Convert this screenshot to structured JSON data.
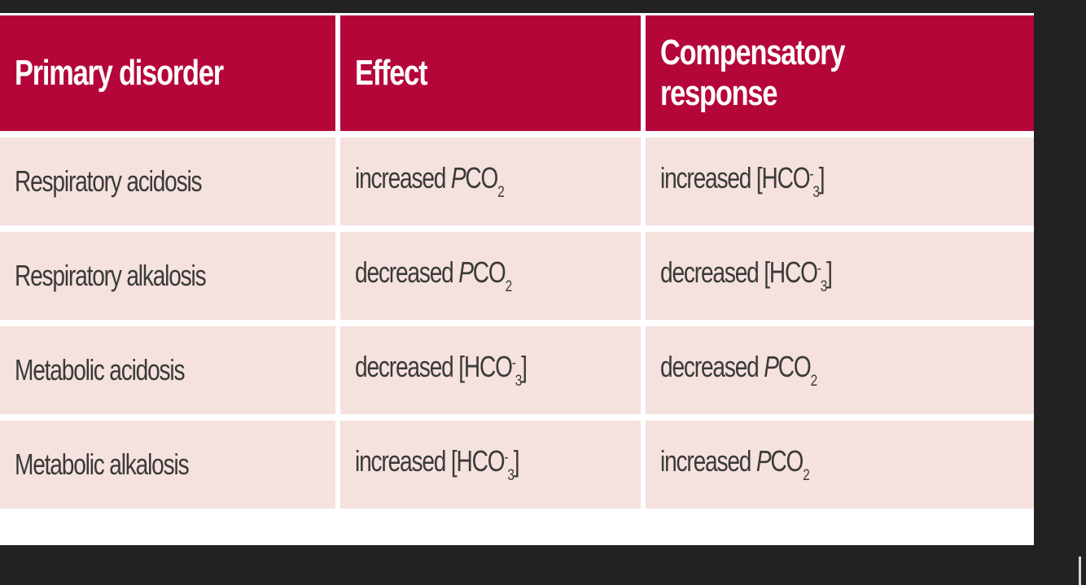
{
  "table": {
    "headers": [
      "Primary disorder",
      "Effect",
      "Compensatory response"
    ],
    "rows": [
      {
        "disorder": "Respiratory acidosis",
        "effect": {
          "pre": "increased ",
          "species": "PCO",
          "sub": "2",
          "sup": "",
          "post": "",
          "italic": true,
          "bracket": false
        },
        "response": {
          "pre": "increased ",
          "species": "HCO",
          "sub": "3",
          "sup": "-",
          "post": "",
          "italic": false,
          "bracket": true
        }
      },
      {
        "disorder": "Respiratory alkalosis",
        "effect": {
          "pre": "decreased ",
          "species": "PCO",
          "sub": "2",
          "sup": "",
          "post": "",
          "italic": true,
          "bracket": false
        },
        "response": {
          "pre": "decreased ",
          "species": "HCO",
          "sub": "3",
          "sup": "-",
          "post": "",
          "italic": false,
          "bracket": true
        }
      },
      {
        "disorder": "Metabolic acidosis",
        "effect": {
          "pre": "decreased ",
          "species": "HCO",
          "sub": "3",
          "sup": "-",
          "post": "",
          "italic": false,
          "bracket": true
        },
        "response": {
          "pre": "decreased ",
          "species": "PCO",
          "sub": "2",
          "sup": "",
          "post": "",
          "italic": true,
          "bracket": false
        }
      },
      {
        "disorder": "Metabolic alkalosis",
        "effect": {
          "pre": "increased ",
          "species": "HCO",
          "sub": "3",
          "sup": "-",
          "post": "",
          "italic": false,
          "bracket": true
        },
        "response": {
          "pre": "increased ",
          "species": "PCO",
          "sub": "2",
          "sup": "",
          "post": "",
          "italic": true,
          "bracket": false
        }
      }
    ]
  },
  "colors": {
    "header_bg": "#b5063a",
    "header_text": "#ffffff",
    "row_bg": "#f5e1dd",
    "body_text": "#3a3a3a",
    "page_bg": "#222222"
  }
}
